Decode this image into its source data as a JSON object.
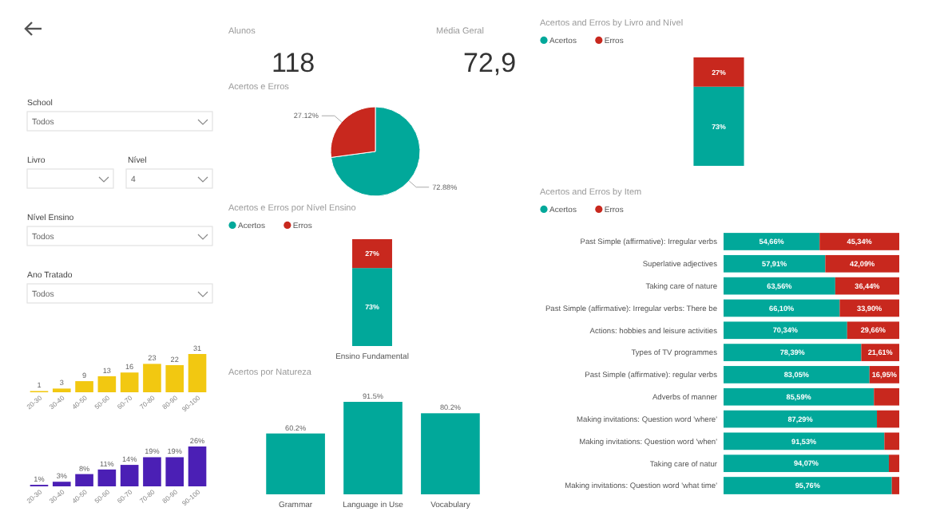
{
  "chart_data": [
    {
      "type": "other",
      "annotations": [
        "School",
        "Todos",
        "Livro",
        "Nível",
        "4",
        "Nível Ensino",
        "Todos",
        "Ano Tratado",
        "Todos"
      ]
    },
    {
      "type": "other",
      "title": "Alunos",
      "annotations": [
        "118"
      ]
    },
    {
      "type": "other",
      "title": "Média Geral",
      "annotations": [
        "72,9"
      ]
    },
    {
      "type": "pie",
      "title": "Acertos e Erros",
      "categories": [
        null,
        null
      ],
      "values": [
        72.88,
        27.12
      ],
      "colors": [
        "#01a89a",
        "#c8281e"
      ],
      "value_labels": [
        "72.88%",
        "27.12%"
      ]
    },
    {
      "type": "bar",
      "title": "Acertos e Erros por Nível Ensino",
      "categories": [
        "Ensino Fundamental"
      ],
      "stacked": true,
      "legend": "top left",
      "series": [
        {
          "name": "Acertos",
          "color": "#01a89a",
          "values": [
            73
          ],
          "value_labels": [
            "73%"
          ]
        },
        {
          "name": "Erros",
          "color": "#c8281e",
          "values": [
            27
          ],
          "value_labels": [
            "27%"
          ]
        }
      ]
    },
    {
      "type": "bar",
      "title": "Acertos por Natureza",
      "categories": [
        "Grammar",
        "Language in Use",
        "Vocabulary"
      ],
      "values": [
        60.2,
        91.5,
        80.2
      ],
      "color": "#01a89a",
      "value_labels": [
        "60.2%",
        "91.5%",
        "80.2%"
      ]
    },
    {
      "type": "bar",
      "categories": [
        "20-30",
        "30-40",
        "40-50",
        "50-60",
        "60-70",
        "70-80",
        "80-90",
        "90-100"
      ],
      "values": [
        1,
        3,
        9,
        13,
        16,
        23,
        22,
        31
      ],
      "color": "#f2c811",
      "data_labels": true
    },
    {
      "type": "bar",
      "categories": [
        "20-30",
        "30-40",
        "40-50",
        "50-60",
        "60-70",
        "70-80",
        "80-90",
        "90-100"
      ],
      "values": [
        1,
        3,
        8,
        11,
        14,
        19,
        19,
        26
      ],
      "color": "#4b1fb5",
      "value_labels": [
        "1%",
        "3%",
        "8%",
        "11%",
        "14%",
        "19%",
        "19%",
        "26%"
      ]
    },
    {
      "type": "bar",
      "title": "Acertos and Erros by Livro and Nível",
      "categories": [
        null
      ],
      "stacked": true,
      "legend": "top left",
      "series": [
        {
          "name": "Acertos",
          "color": "#01a89a",
          "values": [
            73
          ],
          "value_labels": [
            "73%"
          ]
        },
        {
          "name": "Erros",
          "color": "#c8281e",
          "values": [
            27
          ],
          "value_labels": [
            "27%"
          ]
        }
      ]
    },
    {
      "type": "bar",
      "title": "Acertos and Erros by Item",
      "orientation": "horizontal",
      "stacked": true,
      "legend": "top left",
      "categories": [
        "Past Simple (affirmative): Irregular verbs",
        "Superlative adjectives",
        "Taking care of nature",
        "Past Simple (affirmative): Irregular verbs: There be",
        "Actions: hobbies and leisure activities",
        "Types of TV programmes",
        "Past Simple (affirmative): regular verbs",
        "Adverbs of manner",
        "Making invitations: Question word 'where'",
        "Making invitations: Question word 'when'",
        "Taking care of natur",
        "Making invitations: Question word 'what time'"
      ],
      "series": [
        {
          "name": "Acertos",
          "color": "#01a89a",
          "values": [
            54.66,
            57.91,
            63.56,
            66.1,
            70.34,
            78.39,
            83.05,
            85.59,
            87.29,
            91.53,
            94.07,
            95.76
          ],
          "value_labels": [
            "54,66%",
            "57,91%",
            "63,56%",
            "66,10%",
            "70,34%",
            "78,39%",
            "83,05%",
            "85,59%",
            "87,29%",
            "91,53%",
            "94,07%",
            "95,76%"
          ]
        },
        {
          "name": "Erros",
          "color": "#c8281e",
          "values": [
            45.34,
            42.09,
            36.44,
            33.9,
            29.66,
            21.61,
            16.95,
            14.41,
            12.71,
            8.47,
            5.93,
            4.24
          ],
          "value_labels": [
            "45,34%",
            "42,09%",
            "36,44%",
            "33,90%",
            "29,66%",
            "21,61%",
            "16,95%",
            null,
            null,
            null,
            null,
            null
          ]
        }
      ]
    }
  ]
}
